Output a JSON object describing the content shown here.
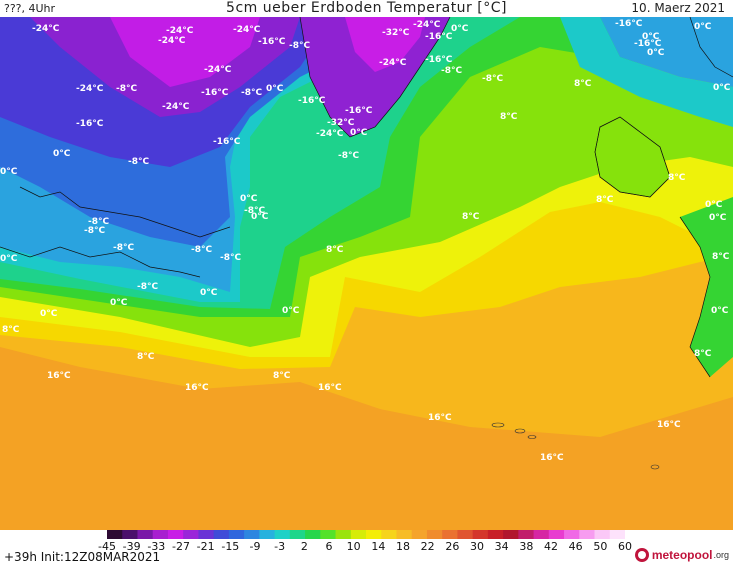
{
  "header": {
    "left": "???, 4Uhr",
    "title": "5cm ueber Erdboden Temperatur [°C]",
    "date": "10. Maerz 2021"
  },
  "map_labels": [
    {
      "id": "l1",
      "text": "-24°C"
    },
    {
      "id": "l2",
      "text": "-24°C"
    },
    {
      "id": "l3",
      "text": "-24°C"
    },
    {
      "id": "l4",
      "text": "-24°C"
    },
    {
      "id": "l5",
      "text": "-16°C"
    },
    {
      "id": "l6",
      "text": "-8°C"
    },
    {
      "id": "l7",
      "text": "-32°C"
    },
    {
      "id": "l8",
      "text": "-16°C"
    },
    {
      "id": "l9",
      "text": "-24°C"
    },
    {
      "id": "l10",
      "text": "0°C"
    },
    {
      "id": "l11",
      "text": "-16°C"
    },
    {
      "id": "l12",
      "text": "0°C"
    },
    {
      "id": "l13",
      "text": "-24°C"
    },
    {
      "id": "l14",
      "text": "-24°C"
    },
    {
      "id": "l15",
      "text": "-16°C"
    },
    {
      "id": "l16",
      "text": "-8°C"
    },
    {
      "id": "l17",
      "text": "0°C"
    },
    {
      "id": "l18",
      "text": "-16°C"
    },
    {
      "id": "l19",
      "text": "-16°C"
    },
    {
      "id": "l20",
      "text": "-32°C"
    },
    {
      "id": "l21",
      "text": "-24°C"
    },
    {
      "id": "l22",
      "text": "0°C"
    },
    {
      "id": "l23",
      "text": "-8°C"
    },
    {
      "id": "l24",
      "text": "-16°C"
    },
    {
      "id": "l25",
      "text": "-8°C"
    },
    {
      "id": "l26",
      "text": "-8°C"
    },
    {
      "id": "l27",
      "text": "8°C"
    },
    {
      "id": "l28",
      "text": "8°C"
    },
    {
      "id": "l29",
      "text": "-24°C"
    },
    {
      "id": "l30",
      "text": "-8°C"
    },
    {
      "id": "l31",
      "text": "-16°C"
    },
    {
      "id": "l32",
      "text": "-24°C"
    },
    {
      "id": "l33",
      "text": "0°C"
    },
    {
      "id": "l34",
      "text": "0°C"
    },
    {
      "id": "l35",
      "text": "-8°C"
    },
    {
      "id": "l36",
      "text": "-16°C"
    },
    {
      "id": "l37",
      "text": "0°C"
    },
    {
      "id": "l38",
      "text": "-8°C"
    },
    {
      "id": "l39",
      "text": "0°C"
    },
    {
      "id": "l40",
      "text": "-16°C"
    },
    {
      "id": "l41",
      "text": "0°C"
    },
    {
      "id": "l42",
      "text": "0°C"
    },
    {
      "id": "l43",
      "text": "8°C"
    },
    {
      "id": "l44",
      "text": "8°C"
    },
    {
      "id": "l45",
      "text": "-8°C"
    },
    {
      "id": "l46",
      "text": "-8°C"
    },
    {
      "id": "l47",
      "text": "8°C"
    },
    {
      "id": "l48",
      "text": "0°C"
    },
    {
      "id": "l49",
      "text": "0°C"
    },
    {
      "id": "l50",
      "text": "8°C"
    },
    {
      "id": "l51",
      "text": "-8°C"
    },
    {
      "id": "l52",
      "text": "-8°C"
    },
    {
      "id": "l53",
      "text": "-8°C"
    },
    {
      "id": "l54",
      "text": "0°C"
    },
    {
      "id": "l55",
      "text": "8°C"
    },
    {
      "id": "l56",
      "text": "0°C"
    },
    {
      "id": "l57",
      "text": "-8°C"
    },
    {
      "id": "l58",
      "text": "0°C"
    },
    {
      "id": "l59",
      "text": "0°C"
    },
    {
      "id": "l60",
      "text": "0°C"
    },
    {
      "id": "l61",
      "text": "0°C"
    },
    {
      "id": "l62",
      "text": "8°C"
    },
    {
      "id": "l63",
      "text": "8°C"
    },
    {
      "id": "l64",
      "text": "8°C"
    },
    {
      "id": "l65",
      "text": "16°C"
    },
    {
      "id": "l66",
      "text": "16°C"
    },
    {
      "id": "l67",
      "text": "8°C"
    },
    {
      "id": "l68",
      "text": "16°C"
    },
    {
      "id": "l69",
      "text": "16°C"
    },
    {
      "id": "l70",
      "text": "16°C"
    },
    {
      "id": "l71",
      "text": "16°C"
    },
    {
      "id": "l72",
      "text": "0°C"
    }
  ],
  "legend": {
    "ticks": [
      "-45",
      "-39",
      "-33",
      "-27",
      "-21",
      "-15",
      "-9",
      "-3",
      "2",
      "6",
      "10",
      "14",
      "18",
      "22",
      "26",
      "30",
      "34",
      "38",
      "42",
      "46",
      "50",
      "60"
    ],
    "colors": [
      "#2d0a33",
      "#4a0f6b",
      "#7a18a8",
      "#a81fd0",
      "#c81ee6",
      "#9a26d9",
      "#6a33d6",
      "#3f4bd8",
      "#2f66dd",
      "#2d86e0",
      "#27b2de",
      "#1fd1c7",
      "#1ed68a",
      "#27d64c",
      "#53e22a",
      "#9ae30c",
      "#d6ec08",
      "#f4ed06",
      "#f6d41b",
      "#f7bc26",
      "#f5a42c",
      "#f08c2e",
      "#ea7131",
      "#e05430",
      "#d4362b",
      "#c81f28",
      "#b1162d",
      "#c11d6b",
      "#d626a4",
      "#e83bd0",
      "#f069e6",
      "#f79cf0",
      "#fbc8f7",
      "#fde2fb"
    ]
  },
  "footer": {
    "init": "+39h Init:12Z08MAR2021",
    "brand": "meteopool",
    "brand_suffix": ".org"
  }
}
